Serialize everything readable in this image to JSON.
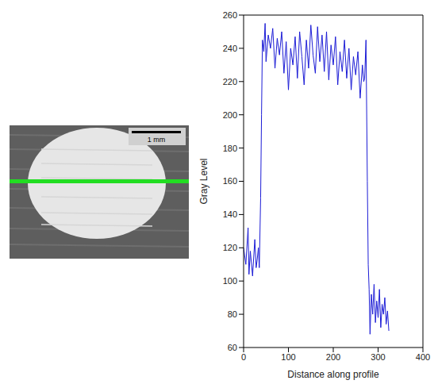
{
  "image": {
    "scale_bar_label": "1 mm"
  },
  "chart_data": {
    "type": "line",
    "x_label": "Distance along profile",
    "y_label": "Gray Level",
    "x": [
      0,
      5,
      10,
      12,
      15,
      20,
      25,
      28,
      30,
      33,
      35,
      38,
      40,
      42,
      45,
      48,
      50,
      55,
      60,
      65,
      70,
      75,
      80,
      85,
      90,
      95,
      100,
      105,
      110,
      115,
      120,
      125,
      130,
      135,
      140,
      145,
      150,
      155,
      160,
      165,
      170,
      175,
      180,
      185,
      190,
      195,
      200,
      205,
      210,
      215,
      220,
      225,
      230,
      235,
      240,
      245,
      250,
      255,
      260,
      265,
      268,
      270,
      273,
      276,
      278,
      280,
      282,
      285,
      288,
      291,
      294,
      297,
      300,
      303,
      306,
      309,
      312,
      315,
      318,
      321,
      324
    ],
    "values": [
      120,
      110,
      132,
      104,
      118,
      103,
      125,
      108,
      112,
      120,
      108,
      150,
      200,
      245,
      238,
      255,
      232,
      248,
      240,
      252,
      228,
      246,
      236,
      250,
      225,
      244,
      215,
      240,
      230,
      247,
      222,
      250,
      235,
      218,
      245,
      228,
      254,
      236,
      225,
      253,
      232,
      248,
      226,
      250,
      221,
      242,
      230,
      247,
      218,
      238,
      226,
      245,
      222,
      240,
      215,
      235,
      224,
      238,
      210,
      230,
      220,
      222,
      245,
      160,
      110,
      95,
      68,
      92,
      80,
      98,
      75,
      88,
      78,
      95,
      72,
      86,
      80,
      90,
      74,
      82,
      70
    ],
    "color": "#1c1cd6",
    "xlim": [
      0,
      400
    ],
    "xticks": [
      0,
      100,
      200,
      300,
      400
    ],
    "ylim": [
      60,
      260
    ],
    "yticks": [
      60,
      80,
      100,
      120,
      140,
      160,
      180,
      200,
      220,
      240,
      260
    ],
    "grid": false
  }
}
